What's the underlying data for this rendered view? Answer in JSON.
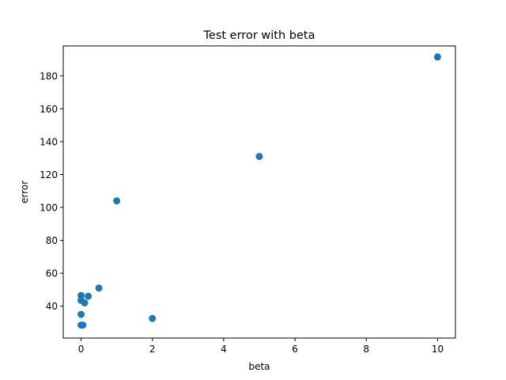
{
  "chart_data": {
    "type": "scatter",
    "title": "Test error with beta",
    "xlabel": "beta",
    "ylabel": "error",
    "xlim": [
      -0.5,
      10.5
    ],
    "ylim": [
      20.6,
      198.2
    ],
    "xticks": [
      0,
      2,
      4,
      6,
      8,
      10
    ],
    "yticks": [
      40,
      60,
      80,
      100,
      120,
      140,
      160,
      180
    ],
    "grid": false,
    "color": "#1f77b4",
    "points": [
      {
        "x": 0,
        "y": 46.5
      },
      {
        "x": 0,
        "y": 43.5
      },
      {
        "x": 0,
        "y": 35.0
      },
      {
        "x": 0,
        "y": 28.5
      },
      {
        "x": 0.05,
        "y": 28.5
      },
      {
        "x": 0.1,
        "y": 42.0
      },
      {
        "x": 0.2,
        "y": 46.0
      },
      {
        "x": 0.5,
        "y": 51.0
      },
      {
        "x": 1,
        "y": 104.0
      },
      {
        "x": 2,
        "y": 32.5
      },
      {
        "x": 5,
        "y": 131.0
      },
      {
        "x": 10,
        "y": 191.5
      }
    ]
  }
}
